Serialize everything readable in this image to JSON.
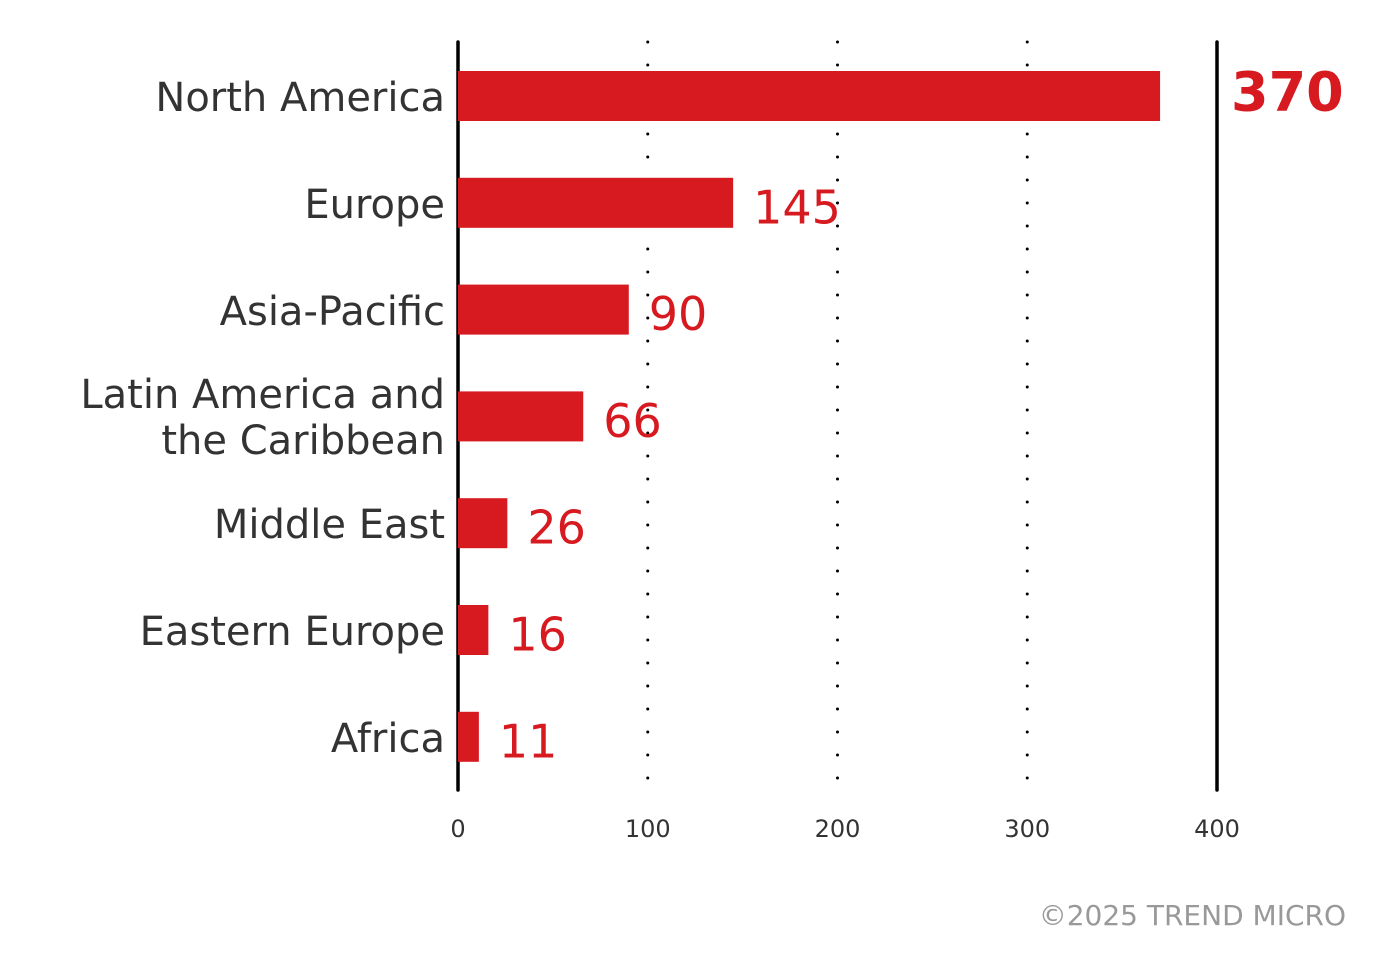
{
  "chart_data": {
    "type": "bar",
    "orientation": "horizontal",
    "categories": [
      "North America",
      "Europe",
      "Asia-Pacific",
      "Latin America and the Caribbean",
      "Middle East",
      "Eastern Europe",
      "Africa"
    ],
    "values": [
      370,
      145,
      90,
      66,
      26,
      16,
      11
    ],
    "color": "#d71920",
    "xlim": [
      0,
      400
    ],
    "xticks": [
      0,
      100,
      200,
      300,
      400
    ],
    "grid": true,
    "footer": "©2025 TREND MICRO"
  }
}
